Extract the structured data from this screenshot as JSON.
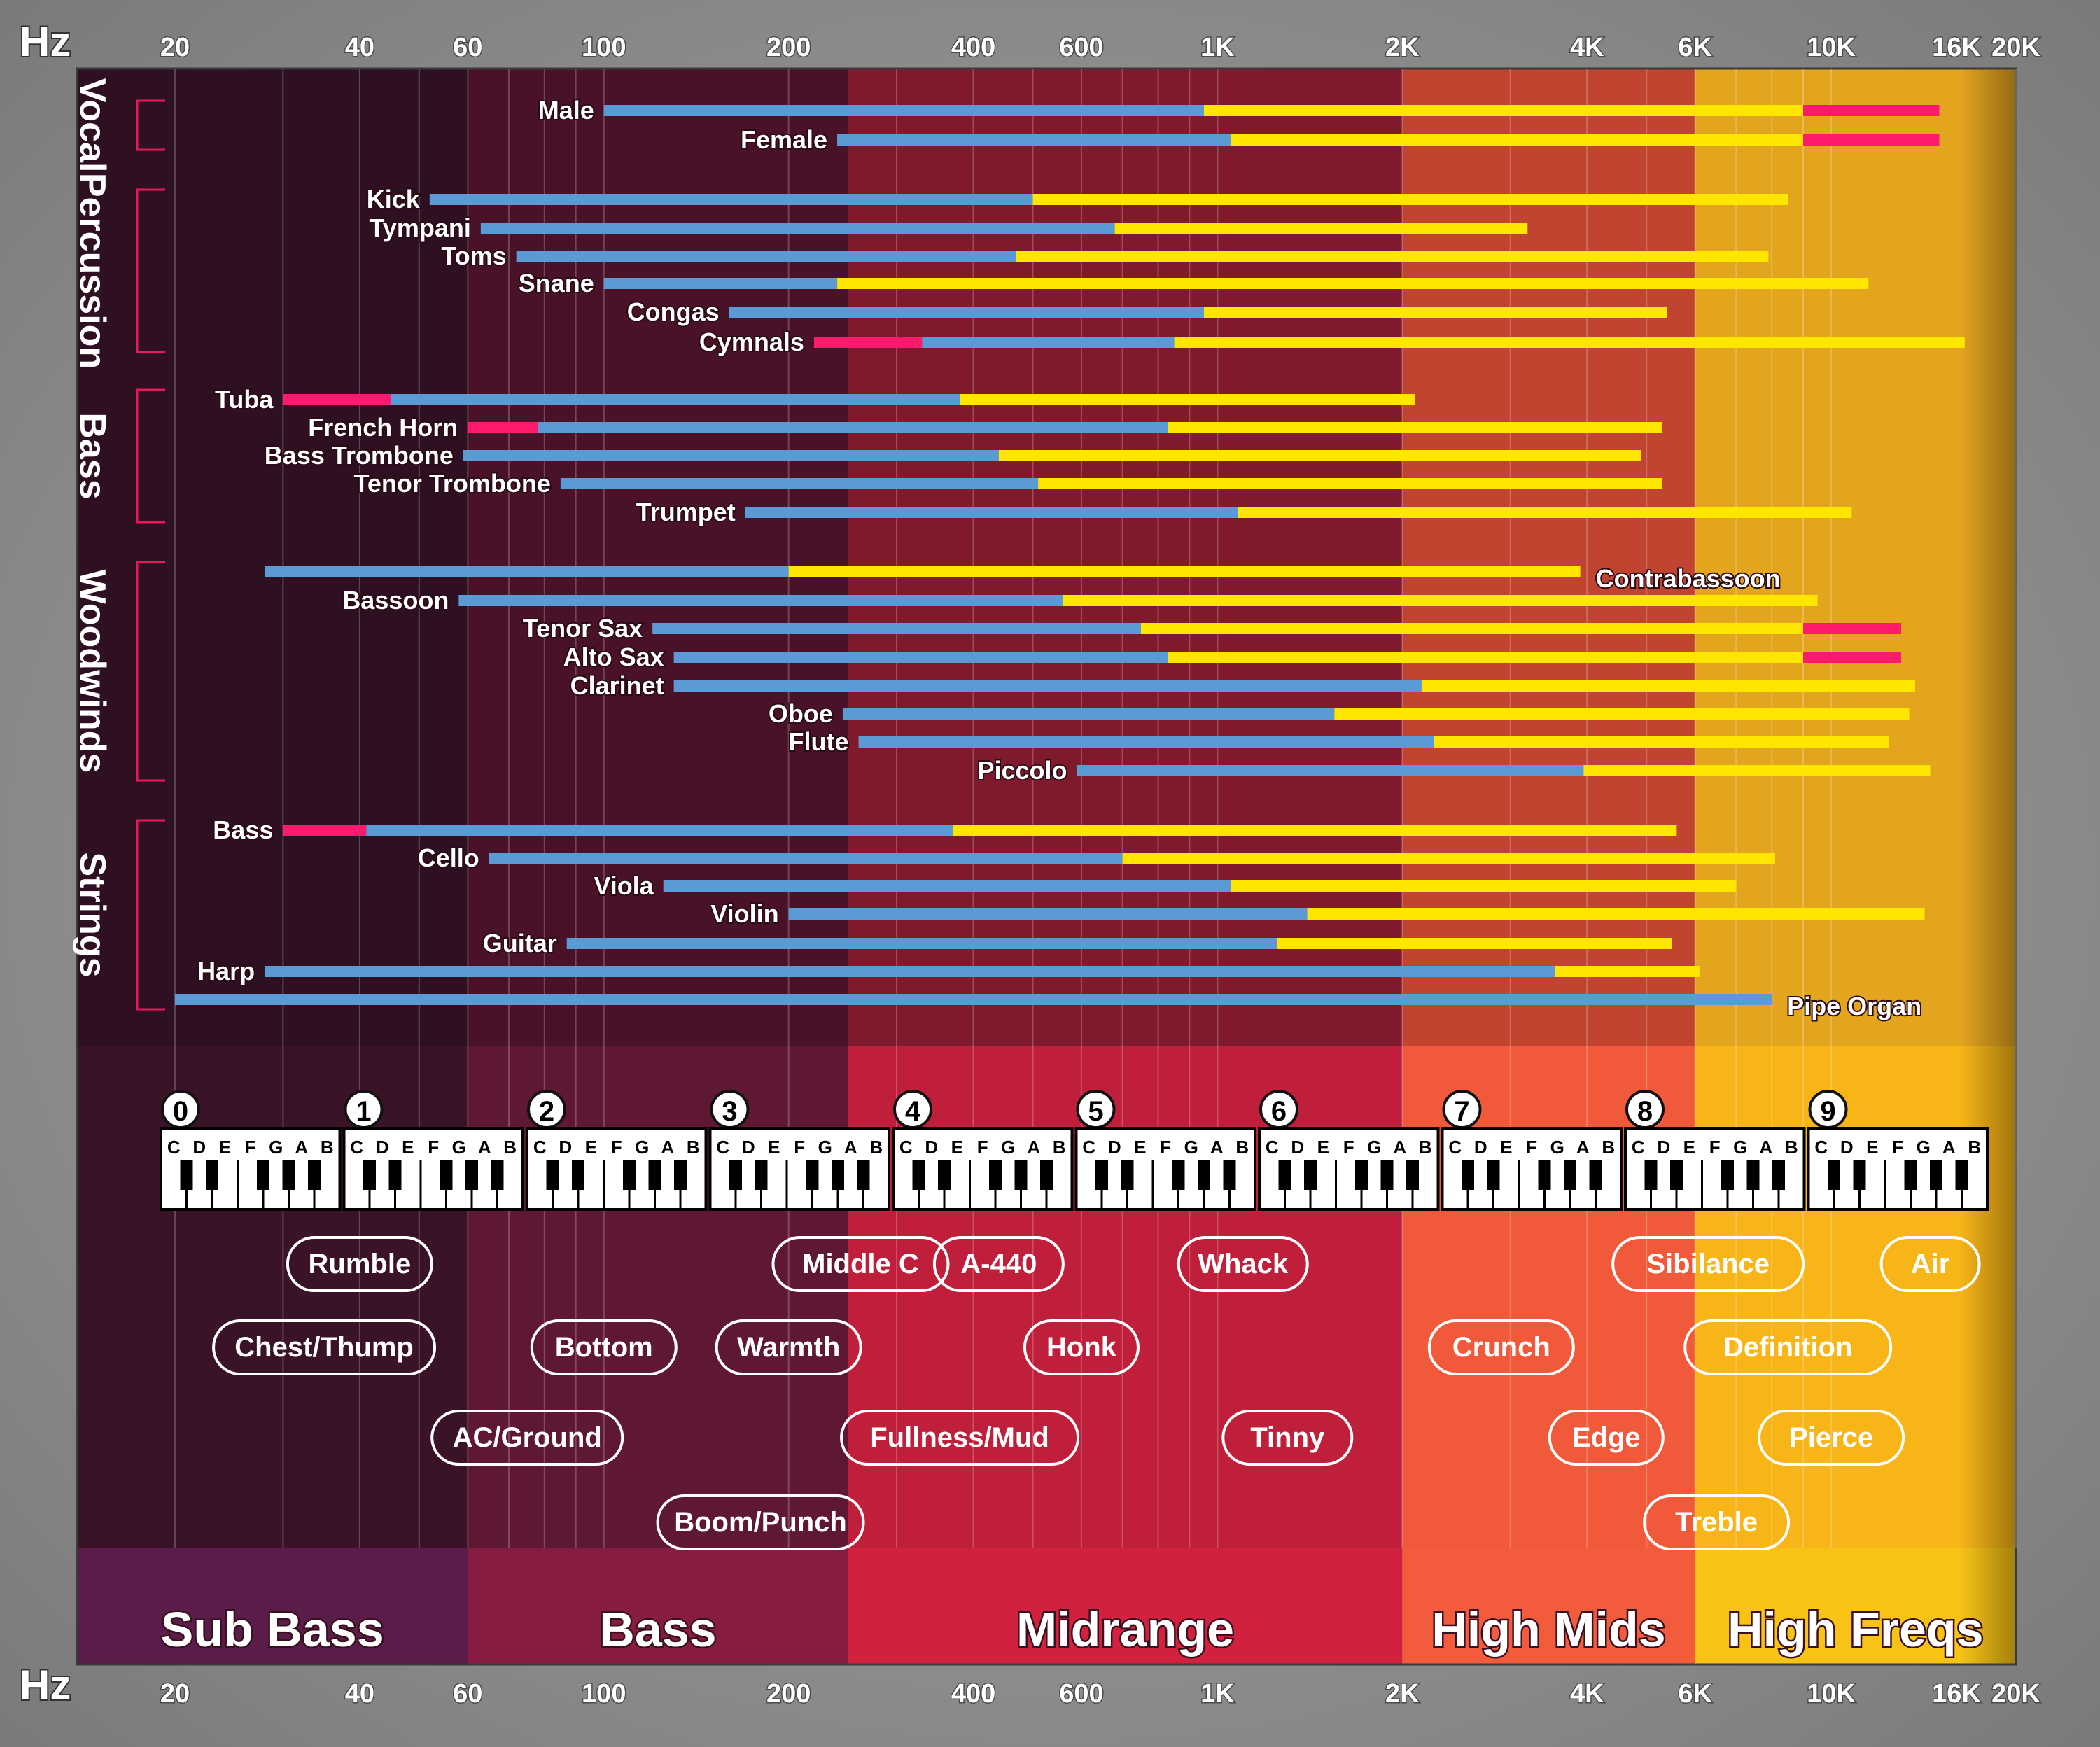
{
  "axis": {
    "unit_label": "Hz",
    "ticks": [
      {
        "label": "20",
        "value": 20
      },
      {
        "label": "40",
        "value": 40
      },
      {
        "label": "60",
        "value": 60
      },
      {
        "label": "100",
        "value": 100
      },
      {
        "label": "200",
        "value": 200
      },
      {
        "label": "400",
        "value": 400
      },
      {
        "label": "600",
        "value": 600
      },
      {
        "label": "1K",
        "value": 1000
      },
      {
        "label": "2K",
        "value": 2000
      },
      {
        "label": "4K",
        "value": 4000
      },
      {
        "label": "6K",
        "value": 6000
      },
      {
        "label": "10K",
        "value": 10000
      },
      {
        "label": "16K",
        "value": 16000
      },
      {
        "label": "20K",
        "value": 20000
      }
    ]
  },
  "colors": {
    "fundamental": "#5b9bd5",
    "harmonics": "#ffe600",
    "extended": "#ff1a6e",
    "bracket": "#e8195a"
  },
  "bands": [
    {
      "label": "Sub Bass",
      "from": 20,
      "to": 60,
      "color": "#2e1022",
      "keyColor": "#3a1328",
      "barColor": "#5a1d4a"
    },
    {
      "label": "Bass",
      "from": 60,
      "to": 250,
      "color": "#4a1228",
      "keyColor": "#5e1833",
      "barColor": "#861c42"
    },
    {
      "label": "Midrange",
      "from": 250,
      "to": 2000,
      "color": "#7f1a2c",
      "keyColor": "#c01f3c",
      "barColor": "#d1213f"
    },
    {
      "label": "High Mids",
      "from": 2000,
      "to": 6000,
      "color": "#c0442f",
      "keyColor": "#f05a3a",
      "barColor": "#f25b3c"
    },
    {
      "label": "High Freqs",
      "from": 6000,
      "to": 20000,
      "color": "#e3a51e",
      "keyColor": "#f7b517",
      "barColor": "#f9c316"
    }
  ],
  "groups": [
    {
      "label": "Vocal",
      "rows": [
        0,
        1
      ]
    },
    {
      "label": "Percussion",
      "rows": [
        2,
        7
      ]
    },
    {
      "label": "Bass",
      "rows": [
        8,
        12
      ]
    },
    {
      "label": "Woodwinds",
      "rows": [
        13,
        20
      ]
    },
    {
      "label": "Strings",
      "rows": [
        21,
        27
      ]
    }
  ],
  "chart_data": {
    "type": "bar",
    "title": "",
    "xlabel": "Hz",
    "xscale": "log",
    "xlim": [
      20,
      20000
    ],
    "series": [
      {
        "name": "Male",
        "group": "Vocal",
        "segments": [
          {
            "from": 100,
            "to": 950,
            "color": "fundamental"
          },
          {
            "from": 950,
            "to": 9000,
            "color": "harmonics"
          },
          {
            "from": 9000,
            "to": 15000,
            "color": "extended"
          }
        ]
      },
      {
        "name": "Female",
        "group": "Vocal",
        "segments": [
          {
            "from": 240,
            "to": 1050,
            "color": "fundamental"
          },
          {
            "from": 1050,
            "to": 9000,
            "color": "harmonics"
          },
          {
            "from": 9000,
            "to": 15000,
            "color": "extended"
          }
        ]
      },
      {
        "name": "Kick",
        "group": "Percussion",
        "segments": [
          {
            "from": 52,
            "to": 500,
            "color": "fundamental"
          },
          {
            "from": 500,
            "to": 8500,
            "color": "harmonics"
          }
        ]
      },
      {
        "name": "Tympani",
        "group": "Percussion",
        "segments": [
          {
            "from": 63,
            "to": 680,
            "color": "fundamental"
          },
          {
            "from": 680,
            "to": 3200,
            "color": "harmonics"
          }
        ]
      },
      {
        "name": "Toms",
        "group": "Percussion",
        "segments": [
          {
            "from": 72,
            "to": 470,
            "color": "fundamental"
          },
          {
            "from": 470,
            "to": 7900,
            "color": "harmonics"
          }
        ]
      },
      {
        "name": "Snane",
        "group": "Percussion",
        "segments": [
          {
            "from": 100,
            "to": 240,
            "color": "fundamental"
          },
          {
            "from": 240,
            "to": 11500,
            "color": "harmonics"
          }
        ]
      },
      {
        "name": "Congas",
        "group": "Percussion",
        "segments": [
          {
            "from": 160,
            "to": 950,
            "color": "fundamental"
          },
          {
            "from": 950,
            "to": 5400,
            "color": "harmonics"
          }
        ]
      },
      {
        "name": "Cymnals",
        "group": "Percussion",
        "segments": [
          {
            "from": 220,
            "to": 330,
            "color": "extended"
          },
          {
            "from": 330,
            "to": 850,
            "color": "fundamental"
          },
          {
            "from": 850,
            "to": 16500,
            "color": "harmonics"
          }
        ]
      },
      {
        "name": "Tuba",
        "group": "Bass",
        "segments": [
          {
            "from": 30,
            "to": 45,
            "color": "extended"
          },
          {
            "from": 45,
            "to": 380,
            "color": "fundamental"
          },
          {
            "from": 380,
            "to": 2100,
            "color": "harmonics"
          }
        ]
      },
      {
        "name": "French Horn",
        "group": "Bass",
        "segments": [
          {
            "from": 60,
            "to": 78,
            "color": "extended"
          },
          {
            "from": 78,
            "to": 830,
            "color": "fundamental"
          },
          {
            "from": 830,
            "to": 5300,
            "color": "harmonics"
          }
        ]
      },
      {
        "name": "Bass Trombone",
        "group": "Bass",
        "segments": [
          {
            "from": 59,
            "to": 440,
            "color": "fundamental"
          },
          {
            "from": 440,
            "to": 4900,
            "color": "harmonics"
          }
        ]
      },
      {
        "name": "Tenor Trombone",
        "group": "Bass",
        "segments": [
          {
            "from": 85,
            "to": 510,
            "color": "fundamental"
          },
          {
            "from": 510,
            "to": 5300,
            "color": "harmonics"
          }
        ]
      },
      {
        "name": "Trumpet",
        "group": "Bass",
        "segments": [
          {
            "from": 170,
            "to": 1080,
            "color": "fundamental"
          },
          {
            "from": 1080,
            "to": 10800,
            "color": "harmonics"
          }
        ]
      },
      {
        "name": "Contrabassoon",
        "group": "Woodwinds",
        "segments": [
          {
            "from": 28,
            "to": 200,
            "color": "fundamental"
          },
          {
            "from": 200,
            "to": 3900,
            "color": "harmonics"
          }
        ]
      },
      {
        "name": "Bassoon",
        "group": "Woodwinds",
        "segments": [
          {
            "from": 58,
            "to": 560,
            "color": "fundamental"
          },
          {
            "from": 560,
            "to": 9500,
            "color": "harmonics"
          }
        ]
      },
      {
        "name": "Tenor Sax",
        "group": "Woodwinds",
        "segments": [
          {
            "from": 120,
            "to": 750,
            "color": "fundamental"
          },
          {
            "from": 750,
            "to": 9000,
            "color": "harmonics"
          },
          {
            "from": 9000,
            "to": 13000,
            "color": "extended"
          }
        ]
      },
      {
        "name": "Alto Sax",
        "group": "Woodwinds",
        "segments": [
          {
            "from": 130,
            "to": 830,
            "color": "fundamental"
          },
          {
            "from": 830,
            "to": 9000,
            "color": "harmonics"
          },
          {
            "from": 9000,
            "to": 13000,
            "color": "extended"
          }
        ]
      },
      {
        "name": "Clarinet",
        "group": "Woodwinds",
        "segments": [
          {
            "from": 130,
            "to": 2150,
            "color": "fundamental"
          },
          {
            "from": 2150,
            "to": 13700,
            "color": "harmonics"
          }
        ]
      },
      {
        "name": "Oboe",
        "group": "Woodwinds",
        "segments": [
          {
            "from": 245,
            "to": 1550,
            "color": "fundamental"
          },
          {
            "from": 1550,
            "to": 13400,
            "color": "harmonics"
          }
        ]
      },
      {
        "name": "Flute",
        "group": "Woodwinds",
        "segments": [
          {
            "from": 260,
            "to": 2250,
            "color": "fundamental"
          },
          {
            "from": 2250,
            "to": 12400,
            "color": "harmonics"
          }
        ]
      },
      {
        "name": "Piccolo",
        "group": "Woodwinds",
        "segments": [
          {
            "from": 590,
            "to": 3950,
            "color": "fundamental"
          },
          {
            "from": 3950,
            "to": 14500,
            "color": "harmonics"
          }
        ]
      },
      {
        "name": "Bass",
        "group": "Strings",
        "segments": [
          {
            "from": 30,
            "to": 41,
            "color": "extended"
          },
          {
            "from": 41,
            "to": 370,
            "color": "fundamental"
          },
          {
            "from": 370,
            "to": 5600,
            "color": "harmonics"
          }
        ]
      },
      {
        "name": "Cello",
        "group": "Strings",
        "segments": [
          {
            "from": 65,
            "to": 700,
            "color": "fundamental"
          },
          {
            "from": 700,
            "to": 8100,
            "color": "harmonics"
          }
        ]
      },
      {
        "name": "Viola",
        "group": "Strings",
        "segments": [
          {
            "from": 125,
            "to": 1050,
            "color": "fundamental"
          },
          {
            "from": 1050,
            "to": 7000,
            "color": "harmonics"
          }
        ]
      },
      {
        "name": "Violin",
        "group": "Strings",
        "segments": [
          {
            "from": 200,
            "to": 1400,
            "color": "fundamental"
          },
          {
            "from": 1400,
            "to": 14200,
            "color": "harmonics"
          }
        ]
      },
      {
        "name": "Guitar",
        "group": "Strings",
        "segments": [
          {
            "from": 87,
            "to": 1250,
            "color": "fundamental"
          },
          {
            "from": 1250,
            "to": 5500,
            "color": "harmonics"
          }
        ]
      },
      {
        "name": "Harp",
        "group": "Strings",
        "segments": [
          {
            "from": 28,
            "to": 3550,
            "color": "fundamental"
          },
          {
            "from": 3550,
            "to": 6100,
            "color": "harmonics"
          }
        ]
      },
      {
        "name": "Pipe Organ",
        "group": "Strings",
        "segments": [
          {
            "from": 20,
            "to": 8000,
            "color": "fundamental"
          }
        ]
      }
    ]
  },
  "piano": {
    "octave_numbers": [
      "0",
      "1",
      "2",
      "3",
      "4",
      "5",
      "6",
      "7",
      "8",
      "9"
    ],
    "note_letters": [
      "C",
      "D",
      "E",
      "F",
      "G",
      "A",
      "B"
    ]
  },
  "descriptors": [
    {
      "label": "Rumble",
      "freq": 40,
      "row": 0
    },
    {
      "label": "Middle C",
      "freq": 262,
      "row": 0
    },
    {
      "label": "A-440",
      "freq": 440,
      "row": 0
    },
    {
      "label": "Whack",
      "freq": 1100,
      "row": 0
    },
    {
      "label": "Sibilance",
      "freq": 6300,
      "row": 0
    },
    {
      "label": "Air",
      "freq": 14500,
      "row": 0
    },
    {
      "label": "Chest/Thump",
      "freq": 35,
      "row": 1
    },
    {
      "label": "Bottom",
      "freq": 100,
      "row": 1
    },
    {
      "label": "Warmth",
      "freq": 200,
      "row": 1
    },
    {
      "label": "Honk",
      "freq": 600,
      "row": 1
    },
    {
      "label": "Crunch",
      "freq": 2900,
      "row": 1
    },
    {
      "label": "Definition",
      "freq": 8500,
      "row": 1
    },
    {
      "label": "AC/Ground",
      "freq": 75,
      "row": 2
    },
    {
      "label": "Fullness/Mud",
      "freq": 380,
      "row": 2
    },
    {
      "label": "Tinny",
      "freq": 1300,
      "row": 2
    },
    {
      "label": "Edge",
      "freq": 4300,
      "row": 2
    },
    {
      "label": "Pierce",
      "freq": 10000,
      "row": 2
    },
    {
      "label": "Boom/Punch",
      "freq": 180,
      "row": 3
    },
    {
      "label": "Treble",
      "freq": 6500,
      "row": 3
    }
  ]
}
